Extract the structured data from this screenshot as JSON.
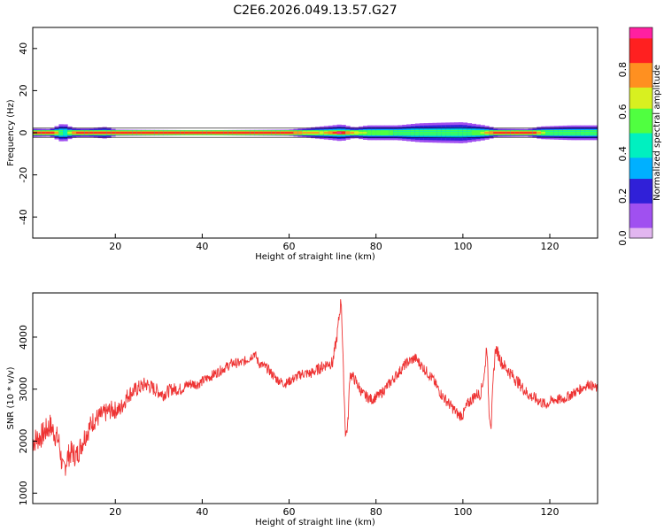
{
  "title": "C2E6.2026.049.13.57.G27",
  "chart_data": [
    {
      "type": "heatmap",
      "xlabel": "Height of straight line (km)",
      "ylabel": "Frequency (Hz)",
      "xlim": [
        1,
        131
      ],
      "ylim": [
        -50,
        50
      ],
      "xticks": [
        20,
        40,
        60,
        80,
        100,
        120
      ],
      "yticks": [
        40,
        20,
        0,
        -20,
        -40
      ],
      "colorbar_label": "Normalized spectral amplitude",
      "colorbar_range": [
        0,
        1
      ],
      "colorbar_ticks": [
        "0.0",
        "0.2",
        "0.4",
        "0.6",
        "0.8"
      ],
      "colorbar_tick_values": [
        0,
        0.2,
        0.4,
        0.6,
        0.8
      ],
      "colors": {
        "colormap": [
          "#e2b6f0",
          "#a050f0",
          "#3020d8",
          "#00b0ff",
          "#00f0c0",
          "#50ff40",
          "#d8f020",
          "#ff9020",
          "#ff2020",
          "#ff20a0"
        ]
      },
      "center_frequency": 0,
      "band_halfwidth": [
        [
          1,
          2.0
        ],
        [
          5,
          1.8
        ],
        [
          8,
          4.5
        ],
        [
          10,
          2.5
        ],
        [
          13,
          2.0
        ],
        [
          18,
          2.8
        ],
        [
          20,
          1.5
        ],
        [
          40,
          1.2
        ],
        [
          60,
          1.5
        ],
        [
          65,
          2.5
        ],
        [
          70,
          3.5
        ],
        [
          72,
          4.0
        ],
        [
          75,
          2.5
        ],
        [
          78,
          3.5
        ],
        [
          85,
          3.5
        ],
        [
          90,
          4.5
        ],
        [
          95,
          4.8
        ],
        [
          100,
          5.0
        ],
        [
          105,
          3.5
        ],
        [
          108,
          2.0
        ],
        [
          115,
          1.8
        ],
        [
          118,
          3.0
        ],
        [
          125,
          3.5
        ],
        [
          131,
          3.5
        ]
      ],
      "core_amplitude": [
        [
          1,
          0.9
        ],
        [
          6,
          0.9
        ],
        [
          8,
          0.4
        ],
        [
          11,
          0.9
        ],
        [
          20,
          0.85
        ],
        [
          40,
          0.9
        ],
        [
          60,
          0.85
        ],
        [
          68,
          0.7
        ],
        [
          72,
          1.0
        ],
        [
          74,
          0.75
        ],
        [
          78,
          0.6
        ],
        [
          85,
          0.55
        ],
        [
          90,
          0.5
        ],
        [
          95,
          0.5
        ],
        [
          100,
          0.5
        ],
        [
          104,
          0.6
        ],
        [
          107,
          0.85
        ],
        [
          112,
          0.9
        ],
        [
          116,
          0.9
        ],
        [
          120,
          0.5
        ],
        [
          131,
          0.5
        ]
      ]
    },
    {
      "type": "line",
      "xlabel": "Height of straight line (km)",
      "ylabel": "SNR (10 * v/v)",
      "xlim": [
        1,
        131
      ],
      "ylim": [
        800,
        4850
      ],
      "xticks": [
        20,
        40,
        60,
        80,
        100,
        120
      ],
      "yticks": [
        1000,
        2000,
        3000,
        4000
      ],
      "series": [
        {
          "color": "#ee3333",
          "x": [
            1,
            3,
            5,
            7,
            8,
            9,
            10,
            11,
            12,
            13,
            15,
            17,
            19,
            21,
            23,
            25,
            27,
            29,
            31,
            33,
            35,
            37,
            39,
            41,
            43,
            45,
            47,
            49,
            51,
            52,
            53,
            55,
            57,
            59,
            61,
            63,
            65,
            67,
            69,
            70,
            71,
            72,
            72.5,
            73,
            73.5,
            74,
            75,
            77,
            79,
            81,
            83,
            85,
            87,
            89,
            90,
            91,
            93,
            95,
            97,
            99,
            100,
            101,
            103,
            104,
            105,
            105.5,
            106,
            106.5,
            107,
            107.5,
            108,
            109,
            111,
            113,
            115,
            117,
            119,
            121,
            123,
            125,
            127,
            129,
            131
          ],
          "y": [
            2000,
            2100,
            2300,
            2000,
            1400,
            1700,
            1800,
            1700,
            1900,
            2100,
            2400,
            2500,
            2600,
            2600,
            2900,
            3000,
            3100,
            3000,
            2900,
            3000,
            3000,
            3100,
            3100,
            3200,
            3300,
            3400,
            3500,
            3500,
            3600,
            3700,
            3500,
            3400,
            3200,
            3100,
            3200,
            3300,
            3300,
            3400,
            3500,
            3500,
            4000,
            4750,
            3300,
            2100,
            2300,
            3300,
            3200,
            2900,
            2800,
            2900,
            3100,
            3300,
            3500,
            3600,
            3500,
            3400,
            3200,
            2900,
            2700,
            2500,
            2500,
            2700,
            2900,
            2900,
            3300,
            3900,
            2600,
            2300,
            3200,
            3800,
            3700,
            3500,
            3300,
            3100,
            2900,
            2800,
            2700,
            2800,
            2800,
            2900,
            3000,
            3100,
            3000
          ]
        }
      ]
    }
  ]
}
